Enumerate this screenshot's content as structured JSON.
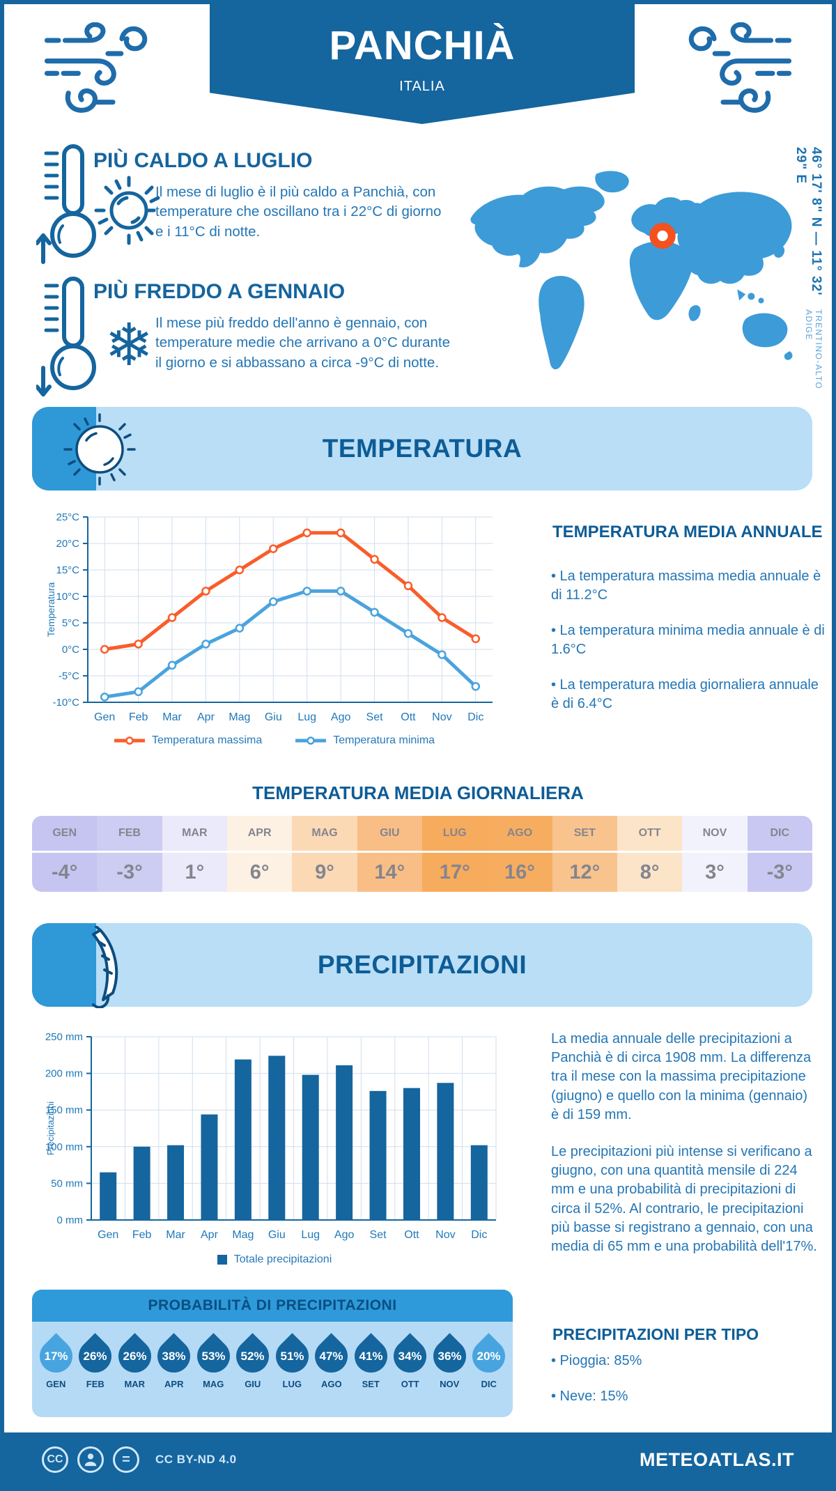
{
  "header": {
    "title": "PANCHIÀ",
    "subtitle": "ITALIA"
  },
  "location": {
    "coordinates": "46° 17' 8\" N — 11° 32' 29\" E",
    "region": "TRENTINO-ALTO ADIGE"
  },
  "highlights": {
    "warm": {
      "title": "PIÙ CALDO A LUGLIO",
      "text": "Il mese di luglio è il più caldo a Panchià, con temperature che oscillano tra i 22°C di giorno e i 11°C di notte."
    },
    "cold": {
      "title": "PIÙ FREDDO A GENNAIO",
      "text": "Il mese più freddo dell'anno è gennaio, con temperature medie che arrivano a 0°C durante il giorno e si abbassano a circa -9°C di notte."
    }
  },
  "temperature": {
    "section_title": "TEMPERATURA",
    "annual_title": "TEMPERATURA MEDIA ANNUALE",
    "annual_bullets": [
      "• La temperatura massima media annuale è di 11.2°C",
      "• La temperatura minima media annuale è di 1.6°C",
      "• La temperatura media giornaliera annuale è di 6.4°C"
    ],
    "daily_title": "TEMPERATURA MEDIA GIORNALIERA",
    "table": {
      "months": [
        "GEN",
        "FEB",
        "MAR",
        "APR",
        "MAG",
        "GIU",
        "LUG",
        "AGO",
        "SET",
        "OTT",
        "NOV",
        "DIC"
      ],
      "values": [
        "-4°",
        "-3°",
        "1°",
        "6°",
        "9°",
        "14°",
        "17°",
        "16°",
        "12°",
        "8°",
        "3°",
        "-3°"
      ],
      "colors": [
        "#c6c5f1",
        "#cdccf3",
        "#eaeafa",
        "#fdf1e3",
        "#fbd9b5",
        "#f9be85",
        "#f7ab5c",
        "#f7ad60",
        "#f9c38e",
        "#fce4c8",
        "#f2f2fc",
        "#c9c8f2"
      ]
    }
  },
  "precipitation": {
    "section_title": "PRECIPITAZIONI",
    "paragraphs": [
      "La media annuale delle precipitazioni a Panchià è di circa 1908 mm. La differenza tra il mese con la massima precipitazione (giugno) e quello con la minima (gennaio) è di 159 mm.",
      "Le precipitazioni più intense si verificano a giugno, con una quantità mensile di 224 mm e una probabilità di precipitazioni di circa il 52%. Al contrario, le precipitazioni più basse si registrano a gennaio, con una media di 65 mm e una probabilità dell'17%."
    ],
    "probability": {
      "title": "PROBABILITÀ DI PRECIPITAZIONI",
      "months": [
        "GEN",
        "FEB",
        "MAR",
        "APR",
        "MAG",
        "GIU",
        "LUG",
        "AGO",
        "SET",
        "OTT",
        "NOV",
        "DIC"
      ],
      "values": [
        "17%",
        "26%",
        "26%",
        "38%",
        "53%",
        "52%",
        "51%",
        "47%",
        "41%",
        "34%",
        "36%",
        "20%"
      ],
      "drop_colors": [
        "#47a4de",
        "#15659e",
        "#15659e",
        "#15659e",
        "#15659e",
        "#15659e",
        "#15659e",
        "#15659e",
        "#15659e",
        "#15659e",
        "#15659e",
        "#47a4de"
      ]
    },
    "types": {
      "title": "PRECIPITAZIONI PER TIPO",
      "bullets": [
        "• Pioggia: 85%",
        "• Neve: 15%"
      ]
    }
  },
  "footer": {
    "license": "CC BY-ND 4.0",
    "brand": "METEOATLAS.IT"
  },
  "chart_data": [
    {
      "type": "line",
      "title": "Temperatura",
      "categories": [
        "Gen",
        "Feb",
        "Mar",
        "Apr",
        "Mag",
        "Giu",
        "Lug",
        "Ago",
        "Set",
        "Ott",
        "Nov",
        "Dic"
      ],
      "series": [
        {
          "name": "Temperatura massima",
          "color": "#f95d2a",
          "values": [
            0,
            1,
            6,
            11,
            15,
            19,
            22,
            22,
            17,
            12,
            6,
            2
          ]
        },
        {
          "name": "Temperatura minima",
          "color": "#4aa3dd",
          "values": [
            -9,
            -8,
            -3,
            1,
            4,
            9,
            11,
            11,
            7,
            3,
            -1,
            -7
          ]
        }
      ],
      "xlabel": "",
      "ylabel": "Temperatura",
      "ylim": [
        -10,
        25
      ],
      "ytick_step": 5,
      "ytick_suffix": "°C",
      "grid": true,
      "legend_position": "bottom"
    },
    {
      "type": "bar",
      "title": "Precipitazioni",
      "categories": [
        "Gen",
        "Feb",
        "Mar",
        "Apr",
        "Mag",
        "Giu",
        "Lug",
        "Ago",
        "Set",
        "Ott",
        "Nov",
        "Dic"
      ],
      "series": [
        {
          "name": "Totale precipitazioni",
          "color": "#15659e",
          "values": [
            65,
            100,
            102,
            144,
            219,
            224,
            198,
            211,
            176,
            180,
            187,
            102
          ]
        }
      ],
      "xlabel": "",
      "ylabel": "Precipitazioni",
      "ylim": [
        0,
        250
      ],
      "ytick_step": 50,
      "ytick_suffix": " mm",
      "grid": true,
      "legend_position": "bottom"
    }
  ]
}
